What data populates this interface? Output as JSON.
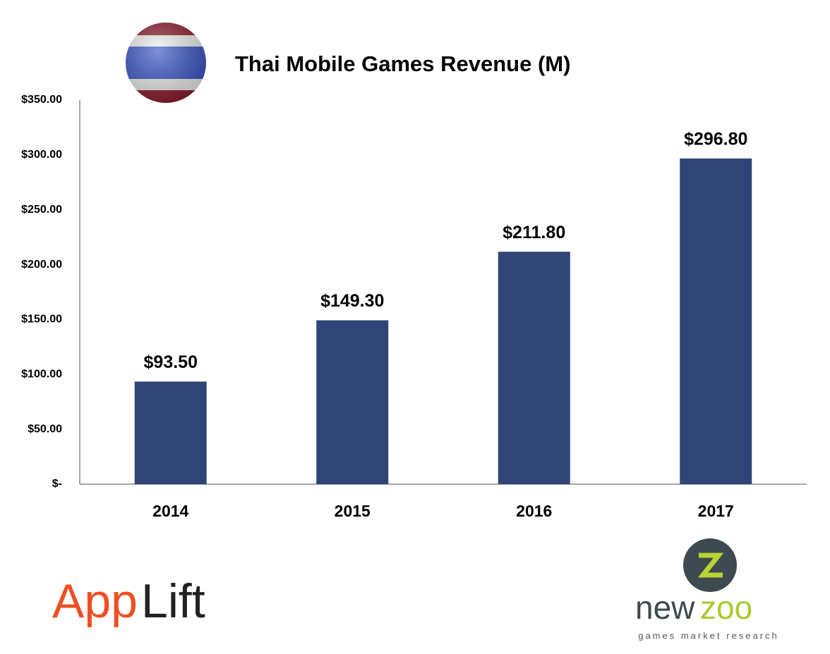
{
  "chart_data": {
    "type": "bar",
    "title": "Thai Mobile Games Revenue (M)",
    "categories": [
      "2014",
      "2015",
      "2016",
      "2017"
    ],
    "values": [
      93.5,
      149.3,
      211.8,
      296.8
    ],
    "value_labels": [
      "$93.50",
      "$149.30",
      "$211.80",
      "$296.80"
    ],
    "color": "#2f4578",
    "ylim": [
      0,
      350
    ],
    "yticks": [
      {
        "value": 0,
        "label": "$-"
      },
      {
        "value": 50,
        "label": "$50.00"
      },
      {
        "value": 100,
        "label": "$100.00"
      },
      {
        "value": 150,
        "label": "$150.00"
      },
      {
        "value": 200,
        "label": "$200.00"
      },
      {
        "value": 250,
        "label": "$250.00"
      },
      {
        "value": 300,
        "label": "$300.00"
      },
      {
        "value": 350,
        "label": "$350.00"
      }
    ],
    "grid": false
  },
  "logos": {
    "left": {
      "first": "App",
      "second": "Lift"
    },
    "right": {
      "first": "new",
      "second": "zoo",
      "tagline": "games market research"
    }
  }
}
